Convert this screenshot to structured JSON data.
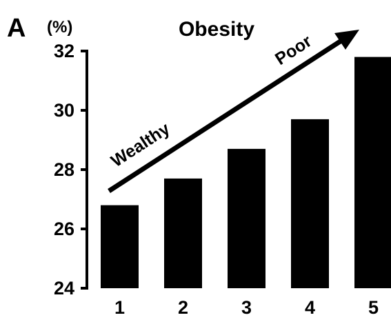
{
  "panel_label": "A",
  "chart_data": {
    "type": "bar",
    "title": "Obesity",
    "ylabel": "(%)",
    "xlabel": "",
    "categories": [
      "1",
      "2",
      "3",
      "4",
      "5"
    ],
    "values": [
      26.8,
      27.7,
      28.7,
      29.7,
      31.8
    ],
    "ylim": [
      24,
      32
    ],
    "yticks": [
      24,
      26,
      28,
      30,
      32
    ],
    "grid": false,
    "bar_color": "#000000",
    "annotations": {
      "arrow_start_label": "Wealthy",
      "arrow_end_label": "Poor"
    }
  }
}
